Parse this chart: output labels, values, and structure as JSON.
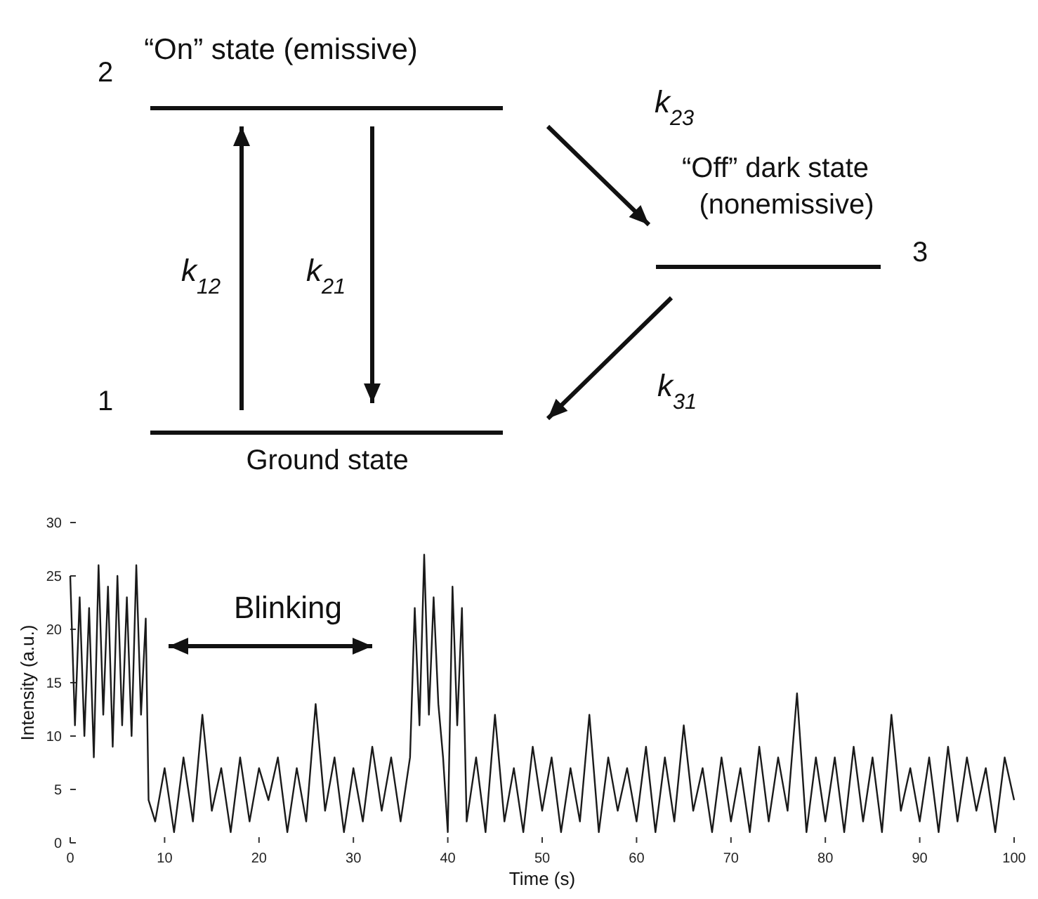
{
  "chart_data": {
    "type": "line",
    "xlabel": "Time (s)",
    "ylabel": "Intensity (a.u.)",
    "xlim": [
      0,
      100
    ],
    "ylim": [
      0,
      30
    ],
    "xticks": [
      0,
      10,
      20,
      30,
      40,
      50,
      60,
      70,
      80,
      90,
      100
    ],
    "yticks": [
      0,
      5,
      10,
      15,
      20,
      25,
      30
    ],
    "grid": false,
    "marker": "none",
    "line_style": "solid",
    "annotations": [
      "“On” state (emissive)",
      "2",
      "1",
      "Ground state",
      "k$_{12}$",
      "k$_{21}$",
      "k$_{23}$",
      "“Off” dark state",
      "(nonemissive)",
      "3",
      "k$_{31}$",
      "Blinking"
    ],
    "series": [
      {
        "color": "#1a1a1a",
        "x": [
          0,
          0.5,
          1,
          1.5,
          2,
          2.5,
          3,
          3.5,
          4,
          4.5,
          5,
          5.5,
          6,
          6.5,
          7,
          7.5,
          8,
          8.3,
          9,
          10,
          11,
          12,
          13,
          14,
          15,
          16,
          17,
          18,
          19,
          20,
          21,
          22,
          23,
          24,
          25,
          26,
          27,
          28,
          29,
          30,
          31,
          32,
          33,
          34,
          35,
          36,
          36.5,
          37,
          37.5,
          38,
          38.5,
          39,
          39.5,
          40,
          40.5,
          41,
          41.5,
          42,
          43,
          44,
          45,
          46,
          47,
          48,
          49,
          50,
          51,
          52,
          53,
          54,
          55,
          56,
          57,
          58,
          59,
          60,
          61,
          62,
          63,
          64,
          65,
          66,
          67,
          68,
          69,
          70,
          71,
          72,
          73,
          74,
          75,
          76,
          77,
          78,
          79,
          80,
          81,
          82,
          83,
          84,
          85,
          86,
          87,
          88,
          89,
          90,
          91,
          92,
          93,
          94,
          95,
          96,
          97,
          98,
          99,
          100
        ],
        "values": [
          25,
          11,
          23,
          10,
          22,
          8,
          26,
          12,
          24,
          9,
          25,
          11,
          23,
          10,
          26,
          12,
          21,
          4,
          2,
          7,
          1,
          8,
          2,
          12,
          3,
          7,
          1,
          8,
          2,
          7,
          4,
          8,
          1,
          7,
          2,
          13,
          3,
          8,
          1,
          7,
          2,
          9,
          3,
          8,
          2,
          8,
          22,
          11,
          27,
          12,
          23,
          13,
          8,
          1,
          24,
          11,
          22,
          2,
          8,
          1,
          12,
          2,
          7,
          1,
          9,
          3,
          8,
          1,
          7,
          2,
          12,
          1,
          8,
          3,
          7,
          2,
          9,
          1,
          8,
          2,
          11,
          3,
          7,
          1,
          8,
          2,
          7,
          1,
          9,
          2,
          8,
          3,
          14,
          1,
          8,
          2,
          8,
          1,
          9,
          2,
          8,
          1,
          12,
          3,
          7,
          2,
          8,
          1,
          9,
          2,
          8,
          3,
          7,
          1,
          8,
          4
        ]
      }
    ]
  }
}
